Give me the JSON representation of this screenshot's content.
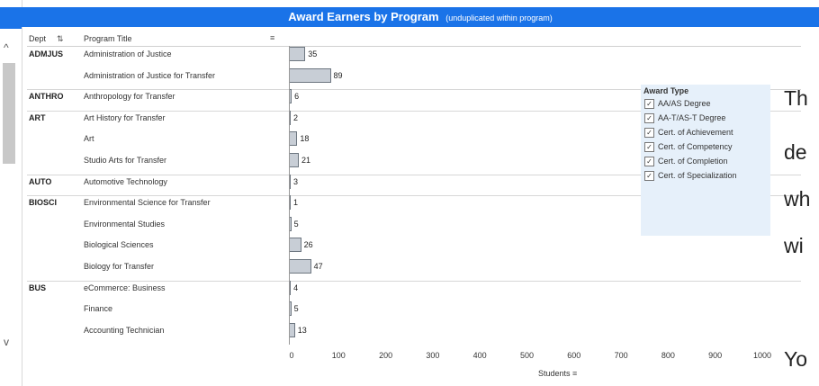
{
  "title": "Award Earners by Program",
  "subtitle": "(unduplicated within program)",
  "columns": {
    "dept": "Dept",
    "program": "Program Title"
  },
  "axis": {
    "ticks": [
      "0",
      "100",
      "200",
      "300",
      "400",
      "500",
      "600",
      "700",
      "800",
      "900",
      "1000"
    ],
    "title": "Students"
  },
  "legend": {
    "title": "Award Type",
    "items": [
      "AA/AS Degree",
      "AA-T/AS-T Degree",
      "Cert. of Achievement",
      "Cert. of Competency",
      "Cert. of Completion",
      "Cert. of Specialization"
    ]
  },
  "rows": [
    {
      "dept": "ADMJUS",
      "program": "Administration of Justice",
      "value": 35
    },
    {
      "dept": "",
      "program": "Administration of Justice for Transfer",
      "value": 89
    },
    {
      "dept": "ANTHRO",
      "program": "Anthropology for Transfer",
      "value": 6
    },
    {
      "dept": "ART",
      "program": "Art History for Transfer",
      "value": 2
    },
    {
      "dept": "",
      "program": "Art",
      "value": 18
    },
    {
      "dept": "",
      "program": "Studio Arts for Transfer",
      "value": 21
    },
    {
      "dept": "AUTO",
      "program": "Automotive Technology",
      "value": 3
    },
    {
      "dept": "BIOSCI",
      "program": "Environmental Science for Transfer",
      "value": 1
    },
    {
      "dept": "",
      "program": "Environmental Studies",
      "value": 5
    },
    {
      "dept": "",
      "program": "Biological Sciences",
      "value": 26
    },
    {
      "dept": "",
      "program": "Biology for Transfer",
      "value": 47
    },
    {
      "dept": "BUS",
      "program": "eCommerce: Business",
      "value": 4
    },
    {
      "dept": "",
      "program": "Finance",
      "value": 5
    },
    {
      "dept": "",
      "program": "Accounting Technician",
      "value": 13
    }
  ],
  "overlay_text": [
    "Th",
    "de",
    "wh",
    "wi",
    "Yo"
  ],
  "chart_data": {
    "type": "bar",
    "orientation": "horizontal",
    "title": "Award Earners by Program",
    "subtitle": "(unduplicated within program)",
    "xlabel": "Students",
    "xlim": [
      0,
      1000
    ],
    "categories": [
      "Administration of Justice",
      "Administration of Justice for Transfer",
      "Anthropology for Transfer",
      "Art History for Transfer",
      "Art",
      "Studio Arts for Transfer",
      "Automotive Technology",
      "Environmental Science for Transfer",
      "Environmental Studies",
      "Biological Sciences",
      "Biology for Transfer",
      "eCommerce: Business",
      "Finance",
      "Accounting Technician"
    ],
    "values": [
      35,
      89,
      6,
      2,
      18,
      21,
      3,
      1,
      5,
      26,
      47,
      4,
      5,
      13
    ],
    "legend_placement": "right",
    "grid": false
  },
  "colors": {
    "title_bar": "#1a73e8",
    "bar_fill": "#c8ced6",
    "bar_border": "#6d7680",
    "legend_bg": "#e6f0fa"
  }
}
